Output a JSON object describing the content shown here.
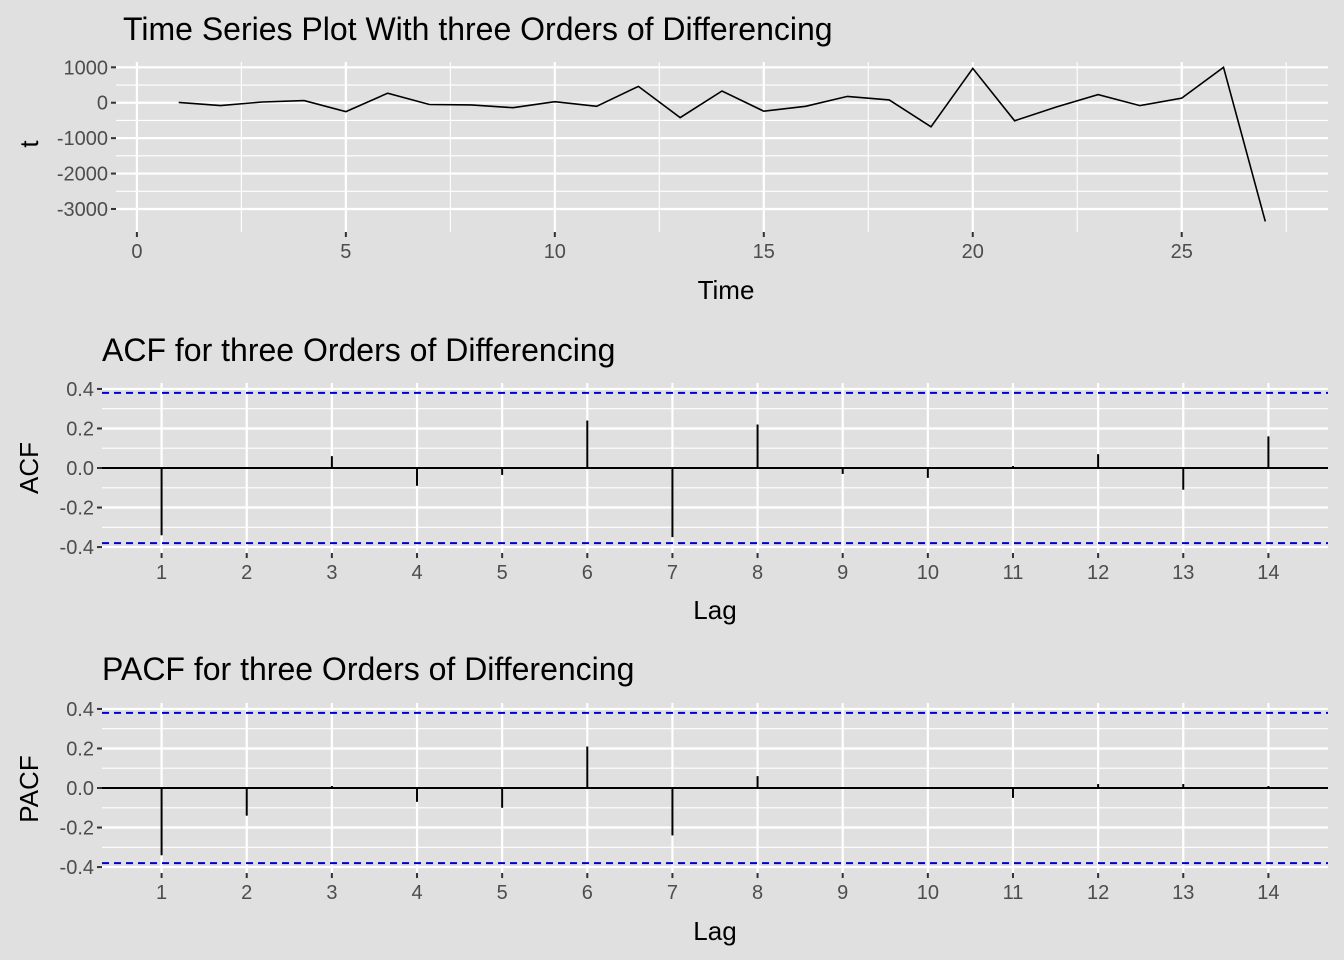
{
  "chart_data": [
    {
      "type": "line",
      "title": "Time Series Plot With three Orders of Differencing",
      "xlabel": "Time",
      "ylabel": "t",
      "xlim": [
        -0.5,
        28.5
      ],
      "ylim": [
        -3650,
        1150
      ],
      "x_ticks": [
        0,
        5,
        10,
        15,
        20,
        25
      ],
      "y_ticks": [
        1000,
        0,
        -1000,
        -2000,
        -3000
      ],
      "grid": true,
      "series": [
        {
          "x": [
            1,
            2,
            3,
            4,
            5,
            6,
            7,
            8,
            9,
            10,
            11,
            12,
            13,
            14,
            15,
            16,
            17,
            18,
            19,
            20,
            21,
            22,
            23,
            24,
            25,
            26,
            27
          ],
          "values": [
            10,
            -80,
            20,
            60,
            -250,
            270,
            -50,
            -60,
            -140,
            30,
            -100,
            460,
            -420,
            330,
            -240,
            -100,
            180,
            80,
            -680,
            970,
            -510,
            -120,
            230,
            -80,
            130,
            1000,
            -3350
          ]
        }
      ]
    },
    {
      "type": "bar",
      "title": "ACF for three Orders of Differencing",
      "xlabel": "Lag",
      "ylabel": "ACF",
      "xlim": [
        0.3,
        14.7
      ],
      "ylim": [
        -0.43,
        0.43
      ],
      "y_ticks": [
        0.4,
        0.2,
        0.0,
        -0.2,
        -0.4
      ],
      "y_tick_labels": [
        "0.4",
        "0.2",
        "0.0",
        "-0.2",
        "-0.4"
      ],
      "ci": [
        0.38,
        -0.38
      ],
      "grid": true,
      "categories": [
        1,
        2,
        3,
        4,
        5,
        6,
        7,
        8,
        9,
        10,
        11,
        12,
        13,
        14
      ],
      "values": [
        -0.34,
        -0.005,
        0.06,
        -0.09,
        -0.035,
        0.24,
        -0.35,
        0.22,
        -0.03,
        -0.05,
        0.01,
        0.07,
        -0.11,
        0.16
      ]
    },
    {
      "type": "bar",
      "title": "PACF for three Orders of Differencing",
      "xlabel": "Lag",
      "ylabel": "PACF",
      "xlim": [
        0.3,
        14.7
      ],
      "ylim": [
        -0.43,
        0.43
      ],
      "y_ticks": [
        0.4,
        0.2,
        0.0,
        -0.2,
        -0.4
      ],
      "y_tick_labels": [
        "0.4",
        "0.2",
        "0.0",
        "-0.2",
        "-0.4"
      ],
      "ci": [
        0.38,
        -0.38
      ],
      "grid": true,
      "categories": [
        1,
        2,
        3,
        4,
        5,
        6,
        7,
        8,
        9,
        10,
        11,
        12,
        13,
        14
      ],
      "values": [
        -0.34,
        -0.14,
        0.01,
        -0.07,
        -0.1,
        0.21,
        -0.24,
        0.06,
        0.0,
        0.0,
        -0.05,
        0.02,
        0.02,
        0.01
      ]
    }
  ]
}
